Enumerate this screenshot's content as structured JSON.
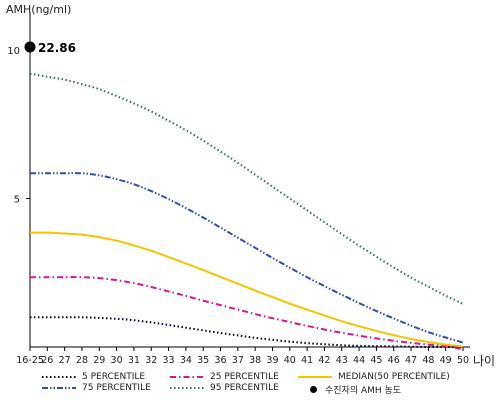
{
  "chart_data": {
    "type": "line",
    "ylabel": "AMH(ng/ml)",
    "xlabel": "나이",
    "ylim": [
      0,
      10
    ],
    "yticks": [
      10,
      5
    ],
    "categories": [
      "16-25",
      "26",
      "27",
      "28",
      "29",
      "30",
      "31",
      "32",
      "33",
      "34",
      "35",
      "36",
      "37",
      "38",
      "39",
      "40",
      "41",
      "42",
      "43",
      "44",
      "45",
      "46",
      "47",
      "48",
      "49",
      "50"
    ],
    "series": [
      {
        "name": "5 PERCENTILE",
        "color": "#000033",
        "dash": "dotted",
        "values": [
          1.0,
          1.0,
          1.0,
          1.0,
          0.98,
          0.95,
          0.9,
          0.83,
          0.74,
          0.65,
          0.56,
          0.47,
          0.39,
          0.31,
          0.24,
          0.18,
          0.13,
          0.09,
          0.06,
          0.04,
          0.03,
          0.02,
          0.01,
          0.0,
          0.0,
          0.0
        ]
      },
      {
        "name": "25 PERCENTILE",
        "color": "#d6168a",
        "dash": "dashdot",
        "values": [
          2.35,
          2.35,
          2.35,
          2.35,
          2.32,
          2.25,
          2.15,
          2.02,
          1.87,
          1.72,
          1.56,
          1.41,
          1.26,
          1.11,
          0.97,
          0.84,
          0.71,
          0.59,
          0.48,
          0.38,
          0.29,
          0.21,
          0.14,
          0.08,
          0.03,
          -0.08
        ]
      },
      {
        "name": "MEDIAN(50 PERCENTILE)",
        "color": "#f2c500",
        "dash": "solid",
        "values": [
          3.85,
          3.85,
          3.82,
          3.78,
          3.7,
          3.58,
          3.42,
          3.24,
          3.03,
          2.81,
          2.59,
          2.36,
          2.13,
          1.9,
          1.68,
          1.46,
          1.26,
          1.06,
          0.87,
          0.7,
          0.54,
          0.4,
          0.27,
          0.17,
          0.08,
          0.02
        ]
      },
      {
        "name": "75 PERCENTILE",
        "color": "#2f4fb5",
        "dash": "dashdotdot",
        "values": [
          5.85,
          5.85,
          5.85,
          5.85,
          5.78,
          5.65,
          5.48,
          5.25,
          4.98,
          4.68,
          4.36,
          4.02,
          3.68,
          3.34,
          3.0,
          2.67,
          2.35,
          2.05,
          1.76,
          1.48,
          1.21,
          0.96,
          0.72,
          0.5,
          0.32,
          0.15
        ]
      },
      {
        "name": "95 PERCENTILE",
        "color": "#2d7a4a",
        "dash": "dotted",
        "values": [
          9.2,
          9.1,
          9.0,
          8.85,
          8.68,
          8.45,
          8.2,
          7.93,
          7.62,
          7.3,
          6.95,
          6.58,
          6.2,
          5.8,
          5.4,
          5.0,
          4.6,
          4.2,
          3.8,
          3.41,
          3.04,
          2.68,
          2.34,
          2.03,
          1.73,
          1.45
        ]
      }
    ],
    "point": {
      "x": "16-25",
      "value": 22.86,
      "label": "22.86",
      "name": "수진자의 AMH 농도"
    },
    "legend_position": "bottom",
    "grid": false
  }
}
